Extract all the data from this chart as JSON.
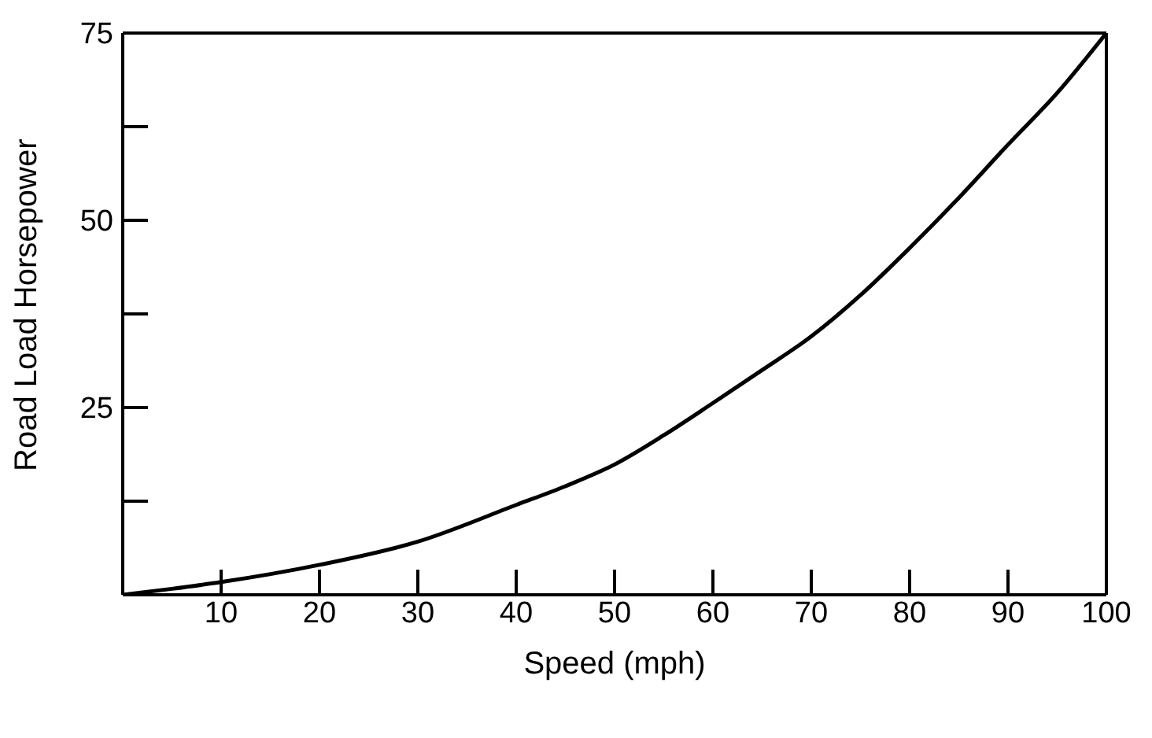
{
  "chart_data": {
    "type": "line",
    "xlabel": "Speed (mph)",
    "ylabel": "Road Load Horsepower",
    "x": [
      0,
      5,
      10,
      20,
      30,
      40,
      45,
      50,
      55,
      60,
      65,
      70,
      75,
      80,
      85,
      90,
      95,
      100
    ],
    "series": [
      {
        "color": "#000000",
        "values": [
          0,
          0.8,
          1.7,
          4.0,
          7.1,
          12.0,
          14.5,
          17.4,
          21.3,
          25.6,
          30,
          34.5,
          40,
          46.3,
          53,
          60.1,
          67,
          75
        ]
      }
    ],
    "xlim": [
      0,
      100
    ],
    "xticks": [
      10,
      20,
      30,
      40,
      50,
      60,
      70,
      80,
      90,
      100
    ],
    "ylim": [
      0,
      75
    ],
    "yticks": [
      {
        "value": 12.5,
        "label": null
      },
      25,
      {
        "value": 37.5,
        "label": null
      },
      50,
      {
        "value": 62.5,
        "label": null
      },
      75
    ],
    "legend": false,
    "marker": "none",
    "line_style": "solid"
  }
}
